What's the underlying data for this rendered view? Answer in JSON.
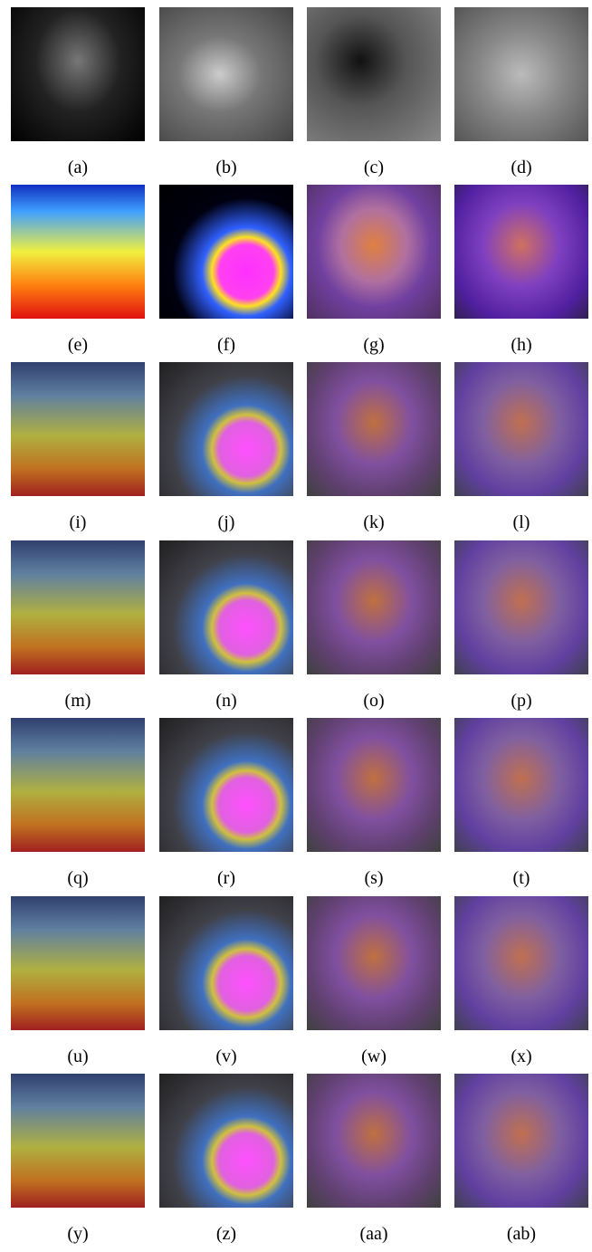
{
  "captions": [
    "(a)",
    "(b)",
    "(c)",
    "(d)",
    "(e)",
    "(f)",
    "(g)",
    "(h)",
    "(i)",
    "(j)",
    "(k)",
    "(l)",
    "(m)",
    "(n)",
    "(o)",
    "(p)",
    "(q)",
    "(r)",
    "(s)",
    "(t)",
    "(u)",
    "(v)",
    "(w)",
    "(x)",
    "(y)",
    "(z)",
    "(aa)",
    "(ab)"
  ]
}
